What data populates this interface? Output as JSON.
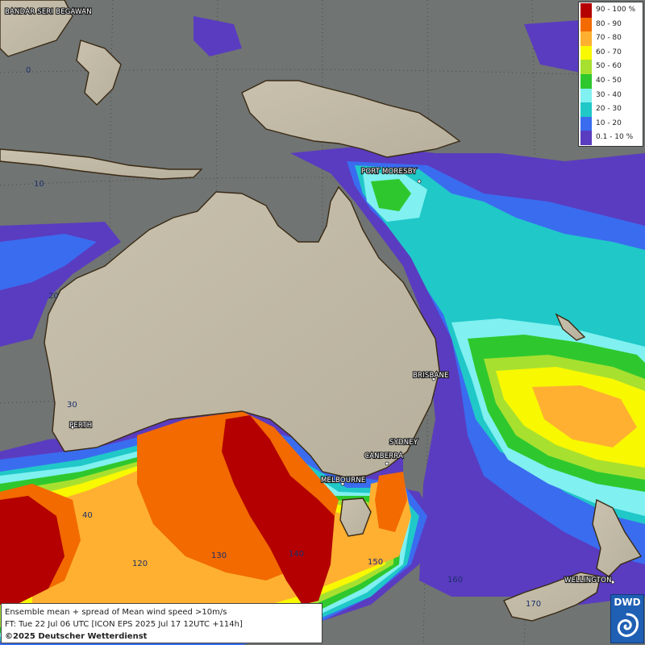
{
  "map": {
    "grid_labels": [
      "0",
      "10",
      "20",
      "30",
      "40",
      "120",
      "130",
      "140",
      "150",
      "160",
      "170"
    ],
    "cities": [
      "BANDAR SERI BEGAWAN",
      "PORT MORESBY",
      "BRISBANE",
      "PERTH",
      "SYDNEY",
      "CANBERRA",
      "MELBOURNE",
      "WELLINGTON"
    ]
  },
  "legend": {
    "items": [
      {
        "label": "90 - 100 %",
        "color": "#b40000"
      },
      {
        "label": "80 - 90",
        "color": "#f26a00"
      },
      {
        "label": "70 - 80",
        "color": "#ffb030"
      },
      {
        "label": "60 - 70",
        "color": "#f8f800"
      },
      {
        "label": "50 - 60",
        "color": "#a8e030"
      },
      {
        "label": "40 - 50",
        "color": "#2ec82e"
      },
      {
        "label": "30 - 40",
        "color": "#80f0f0"
      },
      {
        "label": "20 - 30",
        "color": "#20c8c8"
      },
      {
        "label": "10 - 20",
        "color": "#3a6cf0"
      },
      {
        "label": "0.1 - 10 %",
        "color": "#5a3cc0"
      }
    ]
  },
  "info": {
    "line1": "Ensemble mean + spread of Mean wind speed >10m/s",
    "line2": "FT: Tue 22 Jul 06 UTC [ICON EPS 2025 Jul 17 12UTC +114h]",
    "line3": "©2025 Deutscher Wetterdienst"
  },
  "logo": {
    "text": "DWD"
  }
}
